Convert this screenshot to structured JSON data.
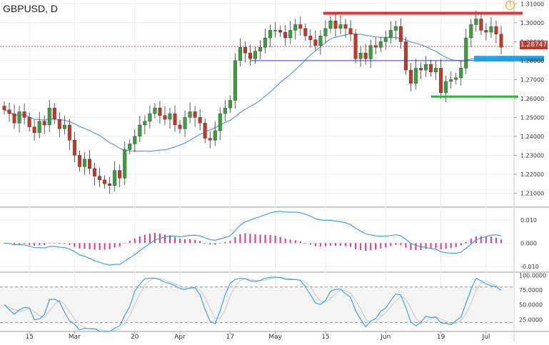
{
  "chart": {
    "ticker": "GBPUSD, D",
    "last_price_label": "1.28747",
    "alert_glyph": "!"
  },
  "colors": {
    "bull": "#3c9e3c",
    "bear": "#c0392b",
    "ma": "#5b9bd5",
    "resistance": "#e53030",
    "support": "#2fb040",
    "blue_zone": "#1ea0e6",
    "histogram": "#d63a8c",
    "oscillator": "#3399dd"
  },
  "chart_data": [
    {
      "type": "candlestick",
      "title": "GBPUSD, D",
      "x_tick_labels": [
        "15",
        "Mar",
        "20",
        "Apr",
        "17",
        "May",
        "15",
        "Jun",
        "19",
        "Jul"
      ],
      "y_ticks": [
        1.21,
        1.22,
        1.23,
        1.24,
        1.25,
        1.26,
        1.27,
        1.28,
        1.29,
        1.3,
        1.31
      ],
      "y_tick_labels": [
        "1.21000",
        "1.22000",
        "1.23000",
        "1.24000",
        "1.25000",
        "1.26000",
        "1.27000",
        "1.28000",
        "1.29000",
        "1.30000",
        "1.31000"
      ],
      "ylim": [
        1.203,
        1.312
      ],
      "last_price": 1.28747,
      "closes": [
        1.254,
        1.252,
        1.247,
        1.253,
        1.25,
        1.245,
        1.242,
        1.248,
        1.246,
        1.255,
        1.249,
        1.244,
        1.246,
        1.238,
        1.23,
        1.224,
        1.228,
        1.223,
        1.219,
        1.217,
        1.215,
        1.214,
        1.222,
        1.218,
        1.233,
        1.236,
        1.24,
        1.246,
        1.248,
        1.252,
        1.255,
        1.251,
        1.249,
        1.252,
        1.246,
        1.244,
        1.25,
        1.253,
        1.25,
        1.247,
        1.239,
        1.238,
        1.243,
        1.252,
        1.255,
        1.259,
        1.28,
        1.287,
        1.284,
        1.281,
        1.285,
        1.287,
        1.292,
        1.296,
        1.296,
        1.295,
        1.292,
        1.296,
        1.299,
        1.297,
        1.293,
        1.291,
        1.288,
        1.293,
        1.297,
        1.301,
        1.297,
        1.299,
        1.297,
        1.294,
        1.281,
        1.284,
        1.281,
        1.288,
        1.287,
        1.29,
        1.292,
        1.296,
        1.298,
        1.29,
        1.275,
        1.268,
        1.276,
        1.275,
        1.278,
        1.274,
        1.276,
        1.263,
        1.269,
        1.27,
        1.271,
        1.276,
        1.292,
        1.299,
        1.302,
        1.296,
        1.295,
        1.298,
        1.294,
        1.287
      ],
      "ma_period": 20,
      "resistance_level": 1.305,
      "support_level": 1.261,
      "blue_line_level": 1.28,
      "blue_zone": [
        1.2795,
        1.2825
      ]
    },
    {
      "type": "bar",
      "title": "",
      "y_tick_labels": [
        "0.010",
        "0.000",
        "-0.010"
      ],
      "y_ticks": [
        0.01,
        0.0,
        -0.01
      ],
      "ylim": [
        -0.0122,
        0.0152
      ]
    },
    {
      "type": "line",
      "title": "",
      "y_tick_labels": [
        "100.0000",
        "75.0000",
        "50.0000",
        "25.0000"
      ],
      "y_ticks": [
        100,
        75,
        50,
        25
      ],
      "ylim": [
        6,
        104
      ],
      "dashed_levels": [
        80,
        20
      ]
    }
  ]
}
